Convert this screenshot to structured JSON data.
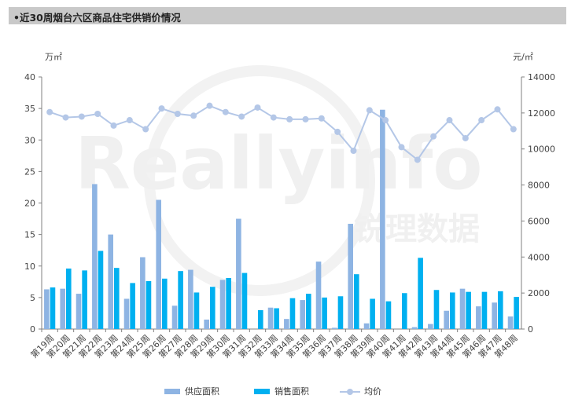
{
  "header": {
    "title": "•近30周烟台六区商品住宅供销价情况"
  },
  "watermark": {
    "text": "Reallyinfo",
    "subtext": "锐理数据"
  },
  "colors": {
    "supply": "#8eb4e3",
    "sales": "#00b0f0",
    "price": "#b4c7e7",
    "axis": "#808080",
    "grid": "#d9d9d9"
  },
  "chart_data": {
    "type": "bar",
    "title": "近30周烟台六区商品住宅供销价情况",
    "categories": [
      "第19周",
      "第20周",
      "第21周",
      "第22周",
      "第23周",
      "第24周",
      "第25周",
      "第26周",
      "第27周",
      "第28周",
      "第29周",
      "第30周",
      "第31周",
      "第32周",
      "第33周",
      "第34周",
      "第35周",
      "第36周",
      "第37周",
      "第38周",
      "第39周",
      "第40周",
      "第41周",
      "第42周",
      "第43周",
      "第44周",
      "第45周",
      "第46周",
      "第47周",
      "第48周"
    ],
    "series": [
      {
        "name": "供应面积",
        "type": "bar",
        "axis": "left",
        "values": [
          6.3,
          6.4,
          5.6,
          23.0,
          15.0,
          4.8,
          11.4,
          20.5,
          3.7,
          9.4,
          1.5,
          7.8,
          17.5,
          0,
          3.4,
          1.6,
          4.6,
          10.7,
          0.2,
          16.7,
          0.9,
          34.8,
          0,
          0.3,
          0.8,
          2.9,
          6.4,
          3.6,
          4.2,
          2.0
        ]
      },
      {
        "name": "销售面积",
        "type": "bar",
        "axis": "left",
        "values": [
          6.6,
          9.6,
          9.3,
          12.4,
          9.7,
          7.3,
          7.6,
          8.0,
          9.2,
          5.8,
          6.7,
          8.1,
          8.9,
          3.0,
          3.3,
          4.9,
          5.6,
          5.0,
          5.2,
          8.7,
          4.8,
          4.4,
          5.7,
          11.3,
          6.2,
          5.8,
          5.9,
          5.9,
          6.0,
          5.1
        ]
      },
      {
        "name": "均价",
        "type": "line",
        "axis": "right",
        "values": [
          12050,
          11750,
          11800,
          11950,
          11300,
          11600,
          11100,
          12250,
          11950,
          11850,
          12400,
          12050,
          11800,
          12300,
          11750,
          11650,
          11650,
          11700,
          10950,
          9900,
          12150,
          11600,
          10100,
          9400,
          10700,
          11600,
          10600,
          11600,
          12200,
          11100
        ]
      }
    ],
    "left_axis": {
      "unit": "万㎡",
      "min": 0,
      "max": 40,
      "ticks": [
        0,
        5,
        10,
        15,
        20,
        25,
        30,
        35,
        40
      ]
    },
    "right_axis": {
      "unit": "元/㎡",
      "min": 0,
      "max": 14000,
      "ticks": [
        0,
        2000,
        4000,
        6000,
        8000,
        10000,
        12000,
        14000
      ]
    },
    "legend_position": "bottom",
    "grid": false
  }
}
